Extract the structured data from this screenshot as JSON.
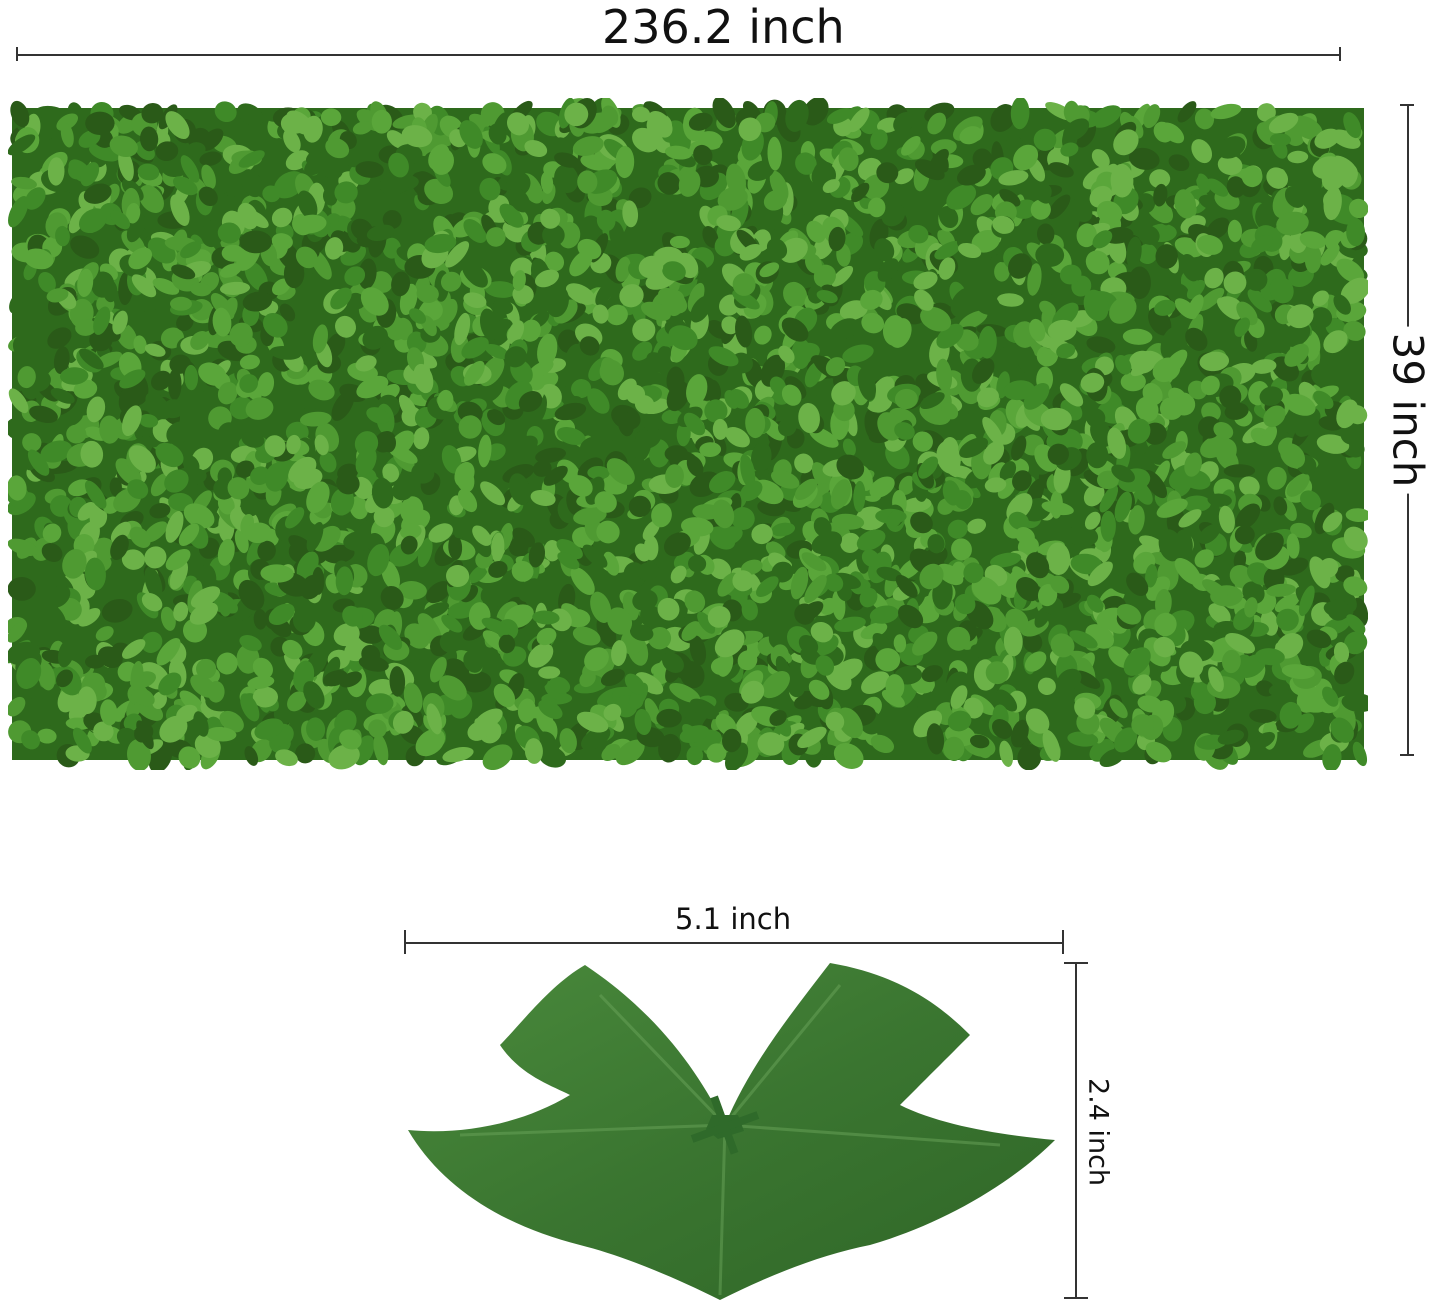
{
  "panel": {
    "width_label": "236.2 inch",
    "height_label": "39 inch",
    "colors": {
      "dark": "#2e6a1c",
      "mid": "#3f8a28",
      "light": "#6cb248"
    }
  },
  "leaf": {
    "width_label": "5.1 inch",
    "height_label": "2.4 inch",
    "color": "#3c7a33"
  }
}
